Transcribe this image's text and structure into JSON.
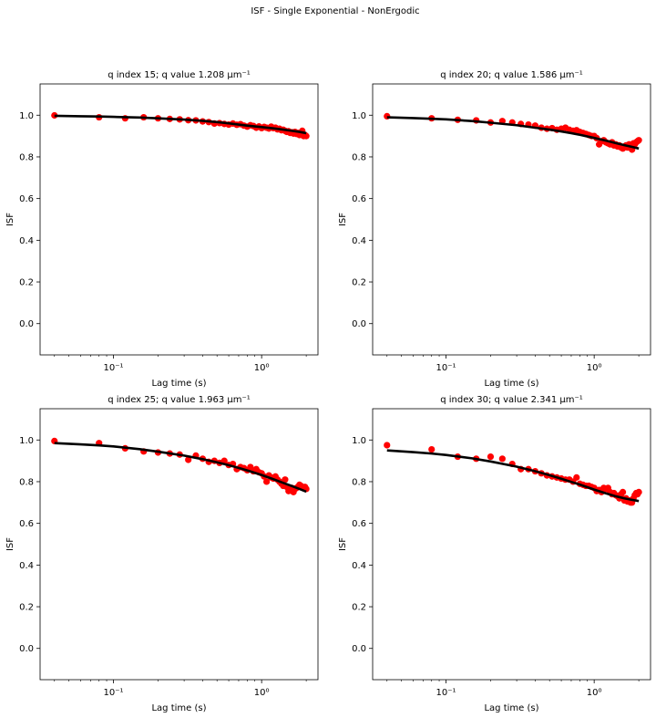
{
  "figure": {
    "suptitle": "ISF - Single Exponential - NonErgodic"
  },
  "style": {
    "point_color": "#ff0000",
    "fit_color": "#000000"
  },
  "chart_data": [
    {
      "type": "scatter",
      "title": "q index 15; q value 1.208 μm⁻¹",
      "xlabel": "Lag time (s)",
      "ylabel": "ISF",
      "xscale": "log",
      "xlim": [
        0.032,
        2.4
      ],
      "ylim": [
        -0.15,
        1.15
      ],
      "yticks": [
        "0.0",
        "0.2",
        "0.4",
        "0.6",
        "0.8",
        "1.0"
      ],
      "xticks": [
        "10⁻¹",
        "10⁰"
      ],
      "grid": false,
      "series": [
        {
          "kind": "points",
          "x": [
            0.04,
            0.08,
            0.12,
            0.16,
            0.2,
            0.24,
            0.28,
            0.32,
            0.36,
            0.4,
            0.44,
            0.48,
            0.52,
            0.56,
            0.6,
            0.64,
            0.68,
            0.72,
            0.76,
            0.8,
            0.84,
            0.88,
            0.92,
            0.96,
            1.0,
            1.04,
            1.08,
            1.12,
            1.16,
            1.2,
            1.24,
            1.28,
            1.32,
            1.36,
            1.4,
            1.44,
            1.48,
            1.52,
            1.56,
            1.6,
            1.64,
            1.68,
            1.72,
            1.76,
            1.8,
            1.84,
            1.88,
            1.92,
            1.96,
            2.0
          ],
          "y": [
            0.999,
            0.99,
            0.985,
            0.99,
            0.985,
            0.982,
            0.98,
            0.976,
            0.975,
            0.97,
            0.967,
            0.96,
            0.962,
            0.958,
            0.955,
            0.96,
            0.954,
            0.957,
            0.95,
            0.945,
            0.952,
            0.948,
            0.94,
            0.946,
            0.938,
            0.944,
            0.94,
            0.936,
            0.945,
            0.938,
            0.94,
            0.932,
            0.935,
            0.928,
            0.93,
            0.925,
            0.92,
            0.923,
            0.915,
            0.918,
            0.912,
            0.92,
            0.91,
            0.915,
            0.905,
            0.912,
            0.925,
            0.9,
            0.905,
            0.9
          ]
        },
        {
          "kind": "fit",
          "x": [
            0.04,
            0.06,
            0.08,
            0.1,
            0.15,
            0.2,
            0.3,
            0.4,
            0.5,
            0.6,
            0.7,
            0.8,
            1.0,
            1.2,
            1.4,
            1.6,
            1.8,
            2.0
          ],
          "y": [
            0.997,
            0.995,
            0.994,
            0.992,
            0.989,
            0.985,
            0.979,
            0.973,
            0.967,
            0.961,
            0.955,
            0.95,
            0.943,
            0.937,
            0.931,
            0.925,
            0.92,
            0.914
          ]
        }
      ]
    },
    {
      "type": "scatter",
      "title": "q index 20; q value 1.586 μm⁻¹",
      "xlabel": "Lag time (s)",
      "ylabel": "ISF",
      "xscale": "log",
      "xlim": [
        0.032,
        2.4
      ],
      "ylim": [
        -0.15,
        1.15
      ],
      "yticks": [
        "0.0",
        "0.2",
        "0.4",
        "0.6",
        "0.8",
        "1.0"
      ],
      "xticks": [
        "10⁻¹",
        "10⁰"
      ],
      "grid": false,
      "series": [
        {
          "kind": "points",
          "x": [
            0.04,
            0.08,
            0.12,
            0.16,
            0.2,
            0.24,
            0.28,
            0.32,
            0.36,
            0.4,
            0.44,
            0.48,
            0.52,
            0.56,
            0.6,
            0.64,
            0.68,
            0.72,
            0.76,
            0.8,
            0.84,
            0.88,
            0.92,
            0.96,
            1.0,
            1.04,
            1.08,
            1.12,
            1.16,
            1.2,
            1.24,
            1.28,
            1.32,
            1.36,
            1.4,
            1.44,
            1.48,
            1.52,
            1.56,
            1.6,
            1.64,
            1.68,
            1.72,
            1.76,
            1.8,
            1.84,
            1.88,
            1.92,
            1.96,
            2.0
          ],
          "y": [
            0.995,
            0.985,
            0.978,
            0.975,
            0.965,
            0.972,
            0.965,
            0.958,
            0.955,
            0.95,
            0.94,
            0.935,
            0.938,
            0.93,
            0.935,
            0.94,
            0.93,
            0.925,
            0.928,
            0.92,
            0.915,
            0.91,
            0.905,
            0.9,
            0.9,
            0.89,
            0.86,
            0.875,
            0.88,
            0.87,
            0.865,
            0.86,
            0.87,
            0.855,
            0.86,
            0.85,
            0.855,
            0.845,
            0.84,
            0.85,
            0.855,
            0.845,
            0.86,
            0.85,
            0.835,
            0.865,
            0.86,
            0.87,
            0.875,
            0.88
          ]
        },
        {
          "kind": "fit",
          "x": [
            0.04,
            0.06,
            0.08,
            0.1,
            0.15,
            0.2,
            0.3,
            0.4,
            0.5,
            0.6,
            0.7,
            0.8,
            1.0,
            1.2,
            1.4,
            1.6,
            1.8,
            2.0
          ],
          "y": [
            0.99,
            0.986,
            0.983,
            0.98,
            0.972,
            0.964,
            0.952,
            0.94,
            0.931,
            0.922,
            0.914,
            0.906,
            0.891,
            0.878,
            0.866,
            0.856,
            0.848,
            0.84
          ]
        }
      ]
    },
    {
      "type": "scatter",
      "title": "q index 25; q value 1.963 μm⁻¹",
      "xlabel": "Lag time (s)",
      "ylabel": "ISF",
      "xscale": "log",
      "xlim": [
        0.032,
        2.4
      ],
      "ylim": [
        -0.15,
        1.15
      ],
      "yticks": [
        "0.0",
        "0.2",
        "0.4",
        "0.6",
        "0.8",
        "1.0"
      ],
      "xticks": [
        "10⁻¹",
        "10⁰"
      ],
      "grid": false,
      "series": [
        {
          "kind": "points",
          "x": [
            0.04,
            0.08,
            0.12,
            0.16,
            0.2,
            0.24,
            0.28,
            0.32,
            0.36,
            0.4,
            0.44,
            0.48,
            0.52,
            0.56,
            0.6,
            0.64,
            0.68,
            0.72,
            0.76,
            0.8,
            0.84,
            0.88,
            0.92,
            0.96,
            1.0,
            1.04,
            1.08,
            1.12,
            1.16,
            1.2,
            1.24,
            1.28,
            1.32,
            1.36,
            1.4,
            1.44,
            1.48,
            1.52,
            1.56,
            1.6,
            1.64,
            1.68,
            1.72,
            1.76,
            1.8,
            1.84,
            1.88,
            1.92,
            1.96,
            2.0
          ],
          "y": [
            0.995,
            0.985,
            0.96,
            0.945,
            0.94,
            0.935,
            0.93,
            0.905,
            0.925,
            0.91,
            0.895,
            0.9,
            0.89,
            0.9,
            0.88,
            0.885,
            0.86,
            0.87,
            0.865,
            0.855,
            0.87,
            0.85,
            0.86,
            0.845,
            0.84,
            0.825,
            0.8,
            0.83,
            0.82,
            0.815,
            0.825,
            0.81,
            0.8,
            0.79,
            0.78,
            0.81,
            0.775,
            0.755,
            0.76,
            0.77,
            0.75,
            0.765,
            0.77,
            0.775,
            0.785,
            0.78,
            0.775,
            0.77,
            0.775,
            0.765
          ]
        },
        {
          "kind": "fit",
          "x": [
            0.04,
            0.06,
            0.08,
            0.1,
            0.15,
            0.2,
            0.3,
            0.4,
            0.5,
            0.6,
            0.7,
            0.8,
            1.0,
            1.2,
            1.4,
            1.6,
            1.8,
            2.0
          ],
          "y": [
            0.985,
            0.979,
            0.974,
            0.969,
            0.956,
            0.944,
            0.925,
            0.908,
            0.893,
            0.879,
            0.866,
            0.854,
            0.832,
            0.812,
            0.794,
            0.779,
            0.765,
            0.752
          ]
        }
      ]
    },
    {
      "type": "scatter",
      "title": "q index 30; q value 2.341 μm⁻¹",
      "xlabel": "Lag time (s)",
      "ylabel": "ISF",
      "xscale": "log",
      "xlim": [
        0.032,
        2.4
      ],
      "ylim": [
        -0.15,
        1.15
      ],
      "yticks": [
        "0.0",
        "0.2",
        "0.4",
        "0.6",
        "0.8",
        "1.0"
      ],
      "xticks": [
        "10⁻¹",
        "10⁰"
      ],
      "grid": false,
      "series": [
        {
          "kind": "points",
          "x": [
            0.04,
            0.08,
            0.12,
            0.16,
            0.2,
            0.24,
            0.28,
            0.32,
            0.36,
            0.4,
            0.44,
            0.48,
            0.52,
            0.56,
            0.6,
            0.64,
            0.68,
            0.72,
            0.76,
            0.8,
            0.84,
            0.88,
            0.92,
            0.96,
            1.0,
            1.04,
            1.08,
            1.12,
            1.16,
            1.2,
            1.24,
            1.28,
            1.32,
            1.36,
            1.4,
            1.44,
            1.48,
            1.52,
            1.56,
            1.6,
            1.64,
            1.68,
            1.72,
            1.76,
            1.8,
            1.84,
            1.88,
            1.92,
            1.96,
            2.0
          ],
          "y": [
            0.975,
            0.955,
            0.92,
            0.91,
            0.92,
            0.91,
            0.885,
            0.86,
            0.86,
            0.85,
            0.84,
            0.83,
            0.825,
            0.82,
            0.815,
            0.81,
            0.81,
            0.8,
            0.82,
            0.79,
            0.785,
            0.78,
            0.78,
            0.775,
            0.77,
            0.755,
            0.76,
            0.75,
            0.77,
            0.765,
            0.77,
            0.75,
            0.74,
            0.745,
            0.735,
            0.73,
            0.72,
            0.74,
            0.75,
            0.71,
            0.72,
            0.705,
            0.71,
            0.7,
            0.7,
            0.72,
            0.735,
            0.745,
            0.74,
            0.75
          ]
        },
        {
          "kind": "fit",
          "x": [
            0.04,
            0.06,
            0.08,
            0.1,
            0.15,
            0.2,
            0.3,
            0.4,
            0.5,
            0.6,
            0.7,
            0.8,
            1.0,
            1.2,
            1.4,
            1.6,
            1.8,
            2.0
          ],
          "y": [
            0.95,
            0.942,
            0.935,
            0.928,
            0.912,
            0.897,
            0.872,
            0.85,
            0.831,
            0.814,
            0.799,
            0.786,
            0.762,
            0.744,
            0.73,
            0.72,
            0.713,
            0.707
          ]
        }
      ]
    }
  ]
}
